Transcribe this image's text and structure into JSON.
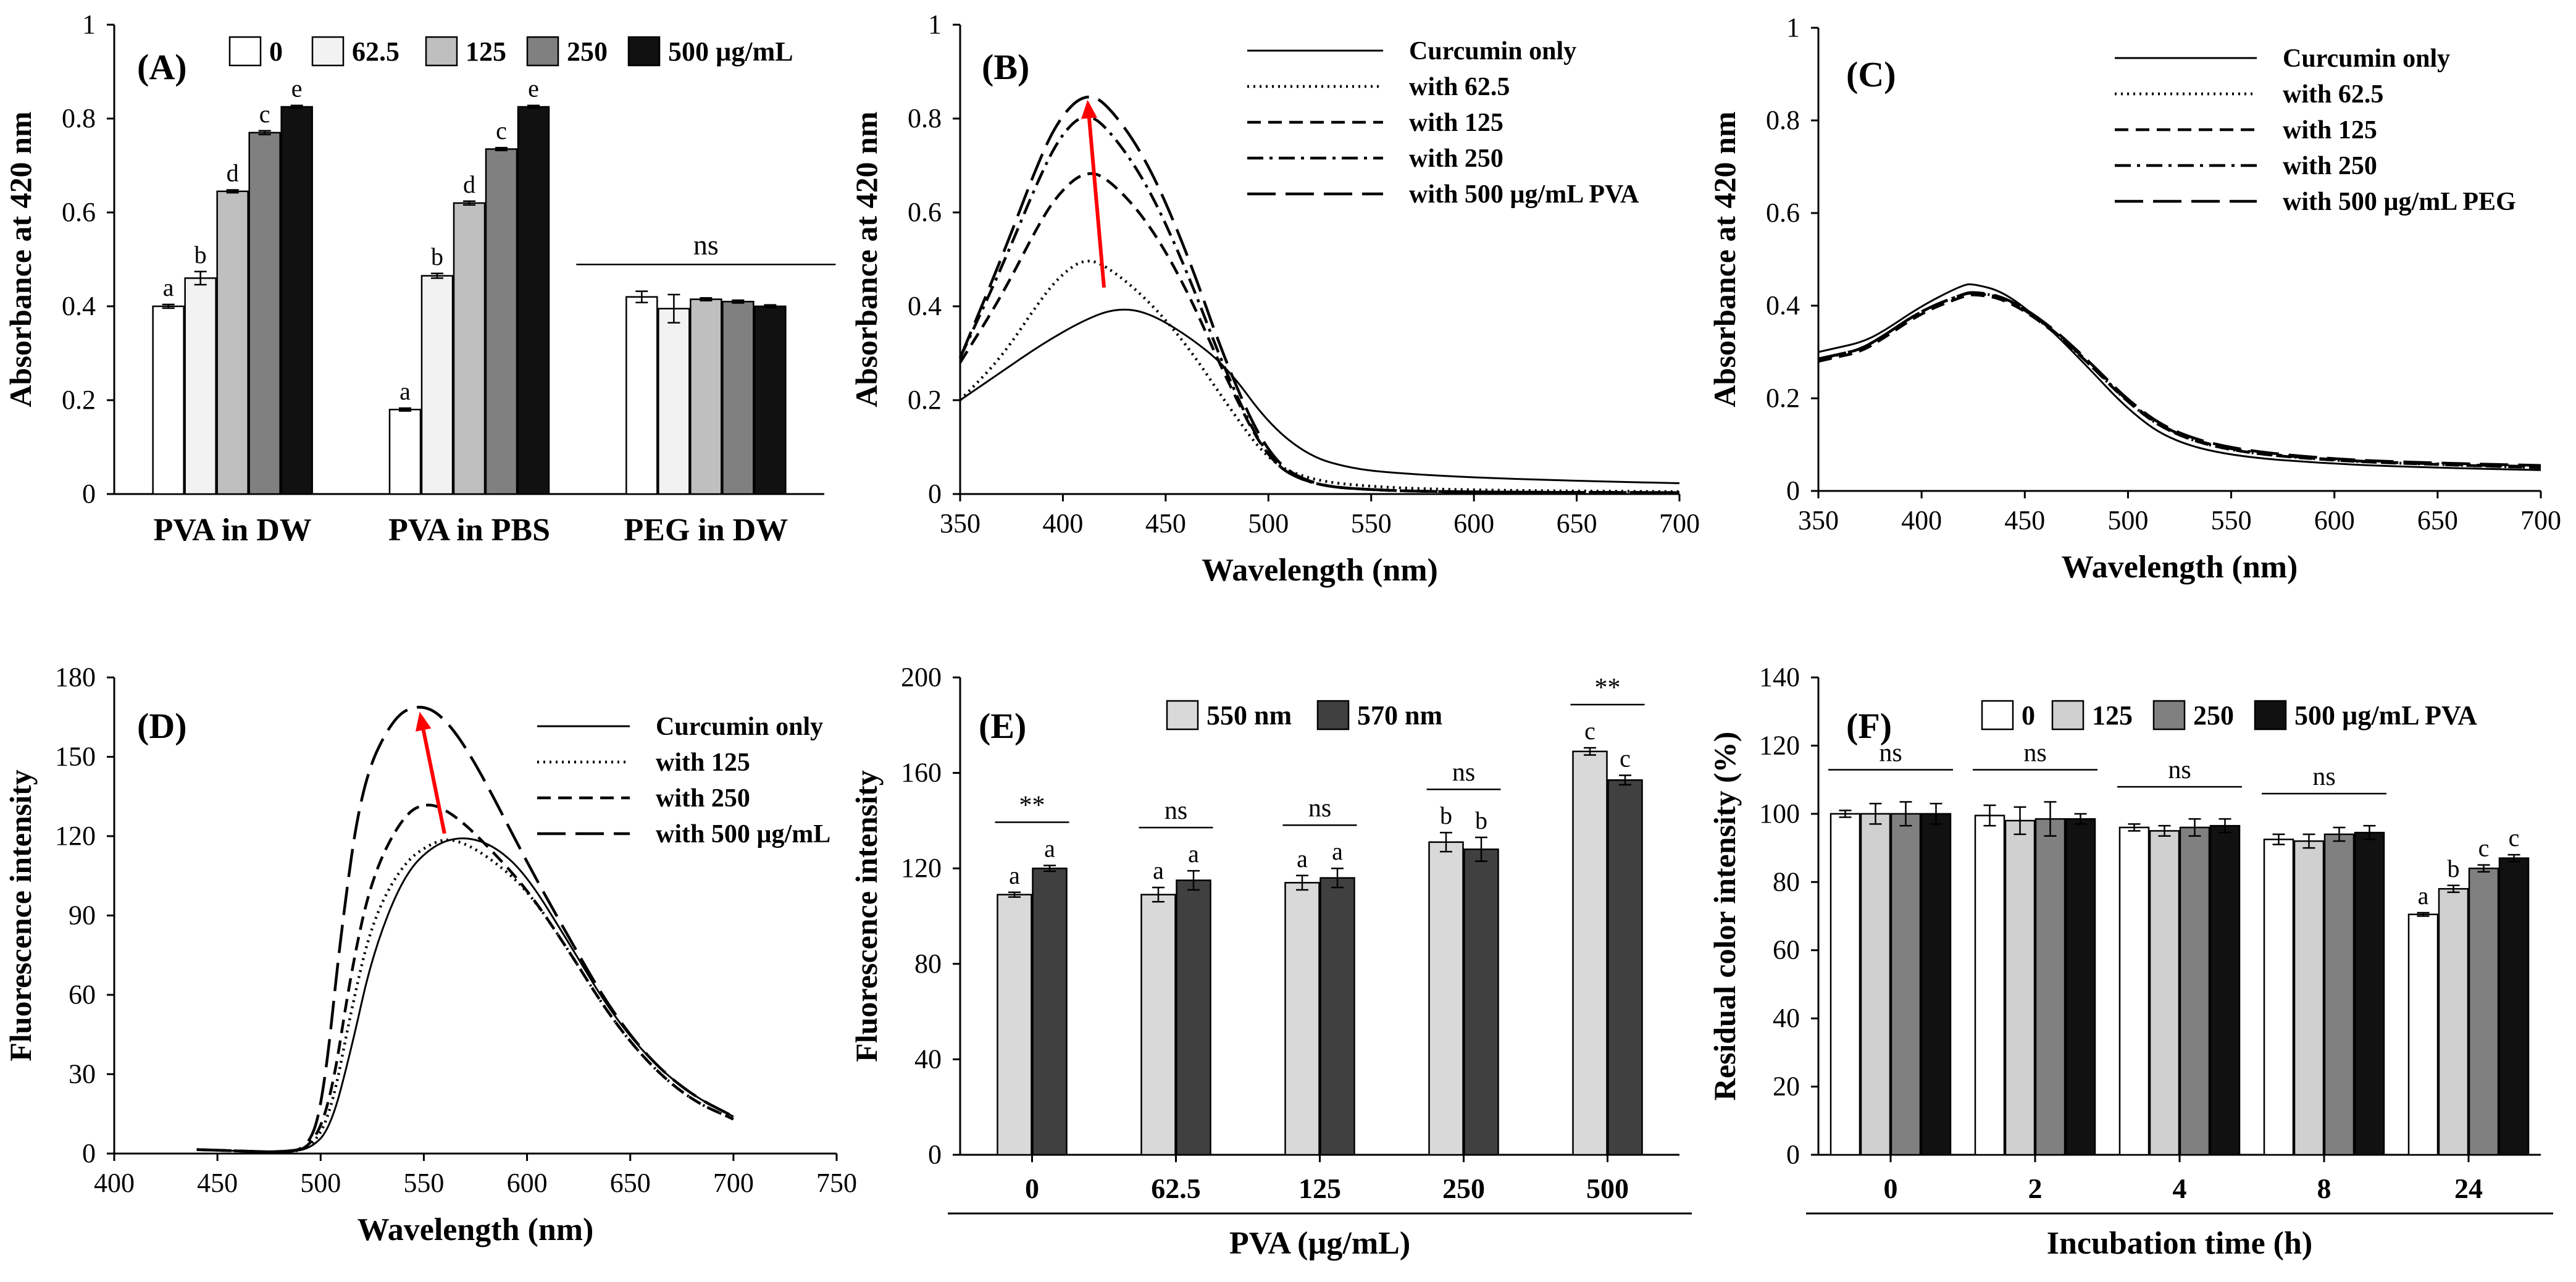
{
  "figure": "Six-panel figure: curcumin absorbance and fluorescence with PVA / PEG",
  "chart_data": [
    {
      "id": "A",
      "type": "bar",
      "panel_label": "(A)",
      "ylabel": "Absorbance at 420 nm",
      "xlabel": "",
      "ylim": [
        0,
        1
      ],
      "yticks": [
        "0",
        "0.2",
        "0.4",
        "0.6",
        "0.8",
        "1"
      ],
      "categories": [
        "PVA in  DW",
        "PVA in PBS",
        "PEG in DW"
      ],
      "legend": [
        "0",
        "62.5",
        "125",
        "250",
        "500 µg/mL"
      ],
      "colors": [
        "#ffffff",
        "#f2f2f2",
        "#bfbfbf",
        "#808080",
        "#111111"
      ],
      "series": [
        {
          "name": "0",
          "values": [
            0.4,
            0.18,
            0.42
          ],
          "errors": [
            0.004,
            0.003,
            0.012
          ]
        },
        {
          "name": "62.5",
          "values": [
            0.46,
            0.465,
            0.395
          ],
          "errors": [
            0.014,
            0.005,
            0.03
          ]
        },
        {
          "name": "125",
          "values": [
            0.645,
            0.62,
            0.415
          ],
          "errors": [
            0.003,
            0.004,
            0.003
          ]
        },
        {
          "name": "250",
          "values": [
            0.77,
            0.735,
            0.41
          ],
          "errors": [
            0.004,
            0.003,
            0.003
          ]
        },
        {
          "name": "500 µg/mL",
          "values": [
            0.825,
            0.825,
            0.4
          ],
          "errors": [
            0.003,
            0.003,
            0.003
          ]
        }
      ],
      "letters": [
        [
          "a",
          "b",
          "d",
          "c",
          "e"
        ],
        [
          "a",
          "b",
          "d",
          "c",
          "e"
        ],
        [
          "",
          "",
          "",
          "",
          ""
        ]
      ],
      "ns_label": "ns"
    },
    {
      "id": "B",
      "type": "line",
      "panel_label": "(B)",
      "xlabel": "Wavelength (nm)",
      "ylabel": "Absorbance at 420 nm",
      "xlim": [
        350,
        700
      ],
      "ylim": [
        0,
        1
      ],
      "xticks": [
        "350",
        "400",
        "450",
        "500",
        "550",
        "600",
        "650",
        "700"
      ],
      "yticks": [
        "0",
        "0.2",
        "0.4",
        "0.6",
        "0.8",
        "1"
      ],
      "legend": [
        "Curcumin only",
        "with 62.5",
        "with 125",
        "with 250",
        "with 500 µg/mL PVA"
      ],
      "series": [
        {
          "name": "Curcumin only",
          "style": "solid",
          "x": [
            350,
            370,
            390,
            410,
            425,
            440,
            460,
            480,
            500,
            520,
            540,
            560,
            600,
            650,
            700
          ],
          "y": [
            0.2,
            0.26,
            0.32,
            0.37,
            0.395,
            0.39,
            0.34,
            0.27,
            0.15,
            0.08,
            0.055,
            0.045,
            0.035,
            0.028,
            0.023
          ]
        },
        {
          "name": "with 62.5",
          "style": "dotted",
          "x": [
            350,
            370,
            390,
            400,
            410,
            420,
            440,
            460,
            480,
            500,
            520,
            550,
            600,
            700
          ],
          "y": [
            0.2,
            0.29,
            0.42,
            0.47,
            0.5,
            0.49,
            0.42,
            0.32,
            0.19,
            0.07,
            0.03,
            0.015,
            0.008,
            0.005
          ]
        },
        {
          "name": "with 125",
          "style": "dashed",
          "x": [
            350,
            370,
            390,
            400,
            410,
            420,
            440,
            460,
            480,
            500,
            520,
            550,
            600,
            700
          ],
          "y": [
            0.28,
            0.42,
            0.59,
            0.65,
            0.685,
            0.68,
            0.59,
            0.44,
            0.24,
            0.07,
            0.02,
            0.008,
            0.004,
            0.003
          ]
        },
        {
          "name": "with 250",
          "style": "dashdot",
          "x": [
            350,
            370,
            390,
            400,
            410,
            420,
            440,
            460,
            480,
            500,
            520,
            550,
            600,
            700
          ],
          "y": [
            0.29,
            0.48,
            0.69,
            0.77,
            0.81,
            0.79,
            0.67,
            0.48,
            0.25,
            0.07,
            0.02,
            0.008,
            0.004,
            0.003
          ]
        },
        {
          "name": "with 500 µg/mL PVA",
          "style": "longdash",
          "x": [
            350,
            370,
            390,
            400,
            410,
            420,
            440,
            460,
            480,
            500,
            520,
            550,
            600,
            700
          ],
          "y": [
            0.29,
            0.5,
            0.73,
            0.81,
            0.85,
            0.84,
            0.72,
            0.52,
            0.27,
            0.08,
            0.02,
            0.008,
            0.004,
            0.003
          ]
        }
      ],
      "arrow": {
        "x1": 420,
        "y1": 0.44,
        "x2": 412,
        "y2": 0.84,
        "color": "#ff0000"
      }
    },
    {
      "id": "C",
      "type": "line",
      "panel_label": "(C)",
      "xlabel": "Wavelength (nm)",
      "ylabel": "Absorbance at 420 nm",
      "xlim": [
        350,
        700
      ],
      "ylim": [
        0,
        1
      ],
      "xticks": [
        "350",
        "400",
        "450",
        "500",
        "550",
        "600",
        "650",
        "700"
      ],
      "yticks": [
        "0",
        "0.2",
        "0.4",
        "0.6",
        "0.8",
        "1"
      ],
      "legend": [
        "Curcumin only",
        "with 62.5",
        "with 125",
        "with 250",
        "with 500 µg/mL PEG"
      ],
      "series": [
        {
          "name": "Curcumin only",
          "style": "solid",
          "x": [
            350,
            360,
            370,
            380,
            400,
            420,
            425,
            440,
            460,
            480,
            500,
            520,
            550,
            600,
            650,
            700
          ],
          "y": [
            0.3,
            0.31,
            0.32,
            0.34,
            0.4,
            0.445,
            0.447,
            0.43,
            0.36,
            0.27,
            0.175,
            0.11,
            0.075,
            0.058,
            0.05,
            0.045
          ]
        },
        {
          "name": "with 62.5",
          "style": "dotted",
          "x": [
            350,
            360,
            370,
            380,
            400,
            420,
            425,
            440,
            460,
            480,
            500,
            520,
            550,
            600,
            650,
            700
          ],
          "y": [
            0.28,
            0.295,
            0.305,
            0.33,
            0.39,
            0.425,
            0.428,
            0.42,
            0.36,
            0.28,
            0.19,
            0.125,
            0.085,
            0.065,
            0.057,
            0.05
          ]
        },
        {
          "name": "with 125",
          "style": "dashed",
          "x": [
            350,
            360,
            370,
            380,
            400,
            420,
            425,
            440,
            460,
            480,
            500,
            520,
            550,
            600,
            650,
            700
          ],
          "y": [
            0.28,
            0.29,
            0.3,
            0.325,
            0.385,
            0.42,
            0.425,
            0.415,
            0.36,
            0.28,
            0.19,
            0.125,
            0.085,
            0.065,
            0.057,
            0.05
          ]
        },
        {
          "name": "with 250",
          "style": "dashdot",
          "x": [
            350,
            360,
            370,
            380,
            400,
            420,
            425,
            440,
            460,
            480,
            500,
            520,
            550,
            600,
            650,
            700
          ],
          "y": [
            0.285,
            0.295,
            0.305,
            0.33,
            0.39,
            0.425,
            0.428,
            0.418,
            0.362,
            0.282,
            0.192,
            0.127,
            0.087,
            0.066,
            0.058,
            0.052
          ]
        },
        {
          "name": "with 500 µg/mL PEG",
          "style": "longdash",
          "x": [
            350,
            360,
            370,
            380,
            400,
            420,
            425,
            440,
            460,
            480,
            500,
            520,
            550,
            600,
            650,
            700
          ],
          "y": [
            0.285,
            0.295,
            0.305,
            0.33,
            0.39,
            0.425,
            0.43,
            0.42,
            0.365,
            0.285,
            0.195,
            0.13,
            0.09,
            0.068,
            0.06,
            0.055
          ]
        }
      ]
    },
    {
      "id": "D",
      "type": "line",
      "panel_label": "(D)",
      "xlabel": "Wavelength (nm)",
      "ylabel": "Fluorescence intensity",
      "xlim": [
        400,
        750
      ],
      "ylim": [
        0,
        180
      ],
      "xticks": [
        "400",
        "450",
        "500",
        "550",
        "600",
        "650",
        "700",
        "750"
      ],
      "yticks": [
        "0",
        "30",
        "60",
        "90",
        "120",
        "150",
        "180"
      ],
      "legend": [
        "Curcumin only",
        "with 125",
        "with 250",
        "with 500 µg/mL"
      ],
      "series": [
        {
          "name": "Curcumin only",
          "style": "solid",
          "x": [
            440,
            460,
            480,
            495,
            505,
            515,
            525,
            540,
            555,
            570,
            585,
            600,
            620,
            640,
            660,
            680,
            700
          ],
          "y": [
            1.5,
            1.0,
            0.5,
            1.5,
            10,
            40,
            75,
            105,
            117,
            120,
            116,
            105,
            80,
            54,
            35,
            22,
            14
          ]
        },
        {
          "name": "with 125",
          "style": "dotted",
          "x": [
            440,
            460,
            480,
            495,
            505,
            515,
            525,
            540,
            555,
            565,
            580,
            600,
            620,
            640,
            660,
            680,
            700
          ],
          "y": [
            1.5,
            1.0,
            0.5,
            1.5,
            15,
            55,
            88,
            110,
            118,
            119,
            113,
            100,
            77,
            52,
            33,
            20,
            13
          ]
        },
        {
          "name": "with 250",
          "style": "dashed",
          "x": [
            440,
            460,
            480,
            495,
            505,
            515,
            525,
            540,
            552,
            565,
            580,
            600,
            620,
            640,
            660,
            680,
            700
          ],
          "y": [
            1.5,
            1.0,
            0.5,
            1.5,
            20,
            70,
            105,
            128,
            133,
            128,
            117,
            100,
            77,
            52,
            33,
            20,
            13
          ]
        },
        {
          "name": "with 500 µg/mL",
          "style": "longdash",
          "x": [
            440,
            460,
            480,
            495,
            502,
            510,
            520,
            535,
            548,
            560,
            575,
            600,
            620,
            640,
            660,
            680,
            700
          ],
          "y": [
            1.5,
            1.0,
            0.5,
            2,
            25,
            85,
            140,
            165,
            170,
            165,
            148,
            110,
            82,
            55,
            35,
            22,
            14
          ]
        }
      ],
      "arrow": {
        "x1": 560,
        "y1": 121,
        "x2": 548,
        "y2": 167,
        "color": "#ff0000"
      }
    },
    {
      "id": "E",
      "type": "bar",
      "panel_label": "(E)",
      "xlabel": "PVA (µg/mL)",
      "ylabel": "Fluorescence intensity",
      "ylim": [
        0,
        200
      ],
      "yticks": [
        "0",
        "40",
        "80",
        "120",
        "160",
        "200"
      ],
      "categories": [
        "0",
        "62.5",
        "125",
        "250",
        "500"
      ],
      "legend": [
        "550 nm",
        "570 nm"
      ],
      "colors": [
        "#d9d9d9",
        "#404040"
      ],
      "series": [
        {
          "name": "550 nm",
          "values": [
            109,
            109,
            114,
            131,
            169
          ],
          "errors": [
            1,
            3,
            3,
            4,
            1.5
          ]
        },
        {
          "name": "570 nm",
          "values": [
            120,
            115,
            116,
            128,
            157
          ],
          "errors": [
            1.2,
            4,
            4,
            5,
            2
          ]
        }
      ],
      "letters": [
        [
          "a",
          "a"
        ],
        [
          "a",
          "a"
        ],
        [
          "a",
          "a"
        ],
        [
          "b",
          "b"
        ],
        [
          "c",
          "c"
        ]
      ],
      "sig": [
        "**",
        "ns",
        "ns",
        "ns",
        "**"
      ]
    },
    {
      "id": "F",
      "type": "bar",
      "panel_label": "(F)",
      "xlabel": "Incubation time (h)",
      "ylabel": "Residual color intensity (%)",
      "ylim": [
        0,
        140
      ],
      "yticks": [
        "0",
        "20",
        "40",
        "60",
        "80",
        "100",
        "120",
        "140"
      ],
      "categories": [
        "0",
        "2",
        "4",
        "8",
        "24"
      ],
      "legend": [
        "0",
        "125",
        "250",
        "500 µg/mL PVA"
      ],
      "colors": [
        "#ffffff",
        "#d0d0d0",
        "#808080",
        "#111111"
      ],
      "series": [
        {
          "name": "0",
          "values": [
            100,
            99.5,
            96,
            92.5,
            70.5
          ],
          "errors": [
            1,
            3,
            1,
            1.5,
            0.5
          ]
        },
        {
          "name": "125",
          "values": [
            100,
            98,
            95,
            92,
            78
          ],
          "errors": [
            3,
            4,
            1.5,
            2,
            1
          ]
        },
        {
          "name": "250",
          "values": [
            100,
            98.5,
            96,
            94,
            84
          ],
          "errors": [
            3.5,
            5,
            2.5,
            2,
            1
          ]
        },
        {
          "name": "500 µg/mL PVA",
          "values": [
            100,
            98.5,
            96.5,
            94.5,
            87
          ],
          "errors": [
            3,
            1.5,
            2,
            2,
            1
          ]
        }
      ],
      "letters": [
        [
          "",
          "",
          "",
          ""
        ],
        [
          "",
          "",
          "",
          ""
        ],
        [
          "",
          "",
          "",
          ""
        ],
        [
          "",
          "",
          "",
          ""
        ],
        [
          "a",
          "b",
          "c",
          "c"
        ]
      ],
      "sig": [
        "ns",
        "ns",
        "ns",
        "ns",
        ""
      ]
    }
  ]
}
